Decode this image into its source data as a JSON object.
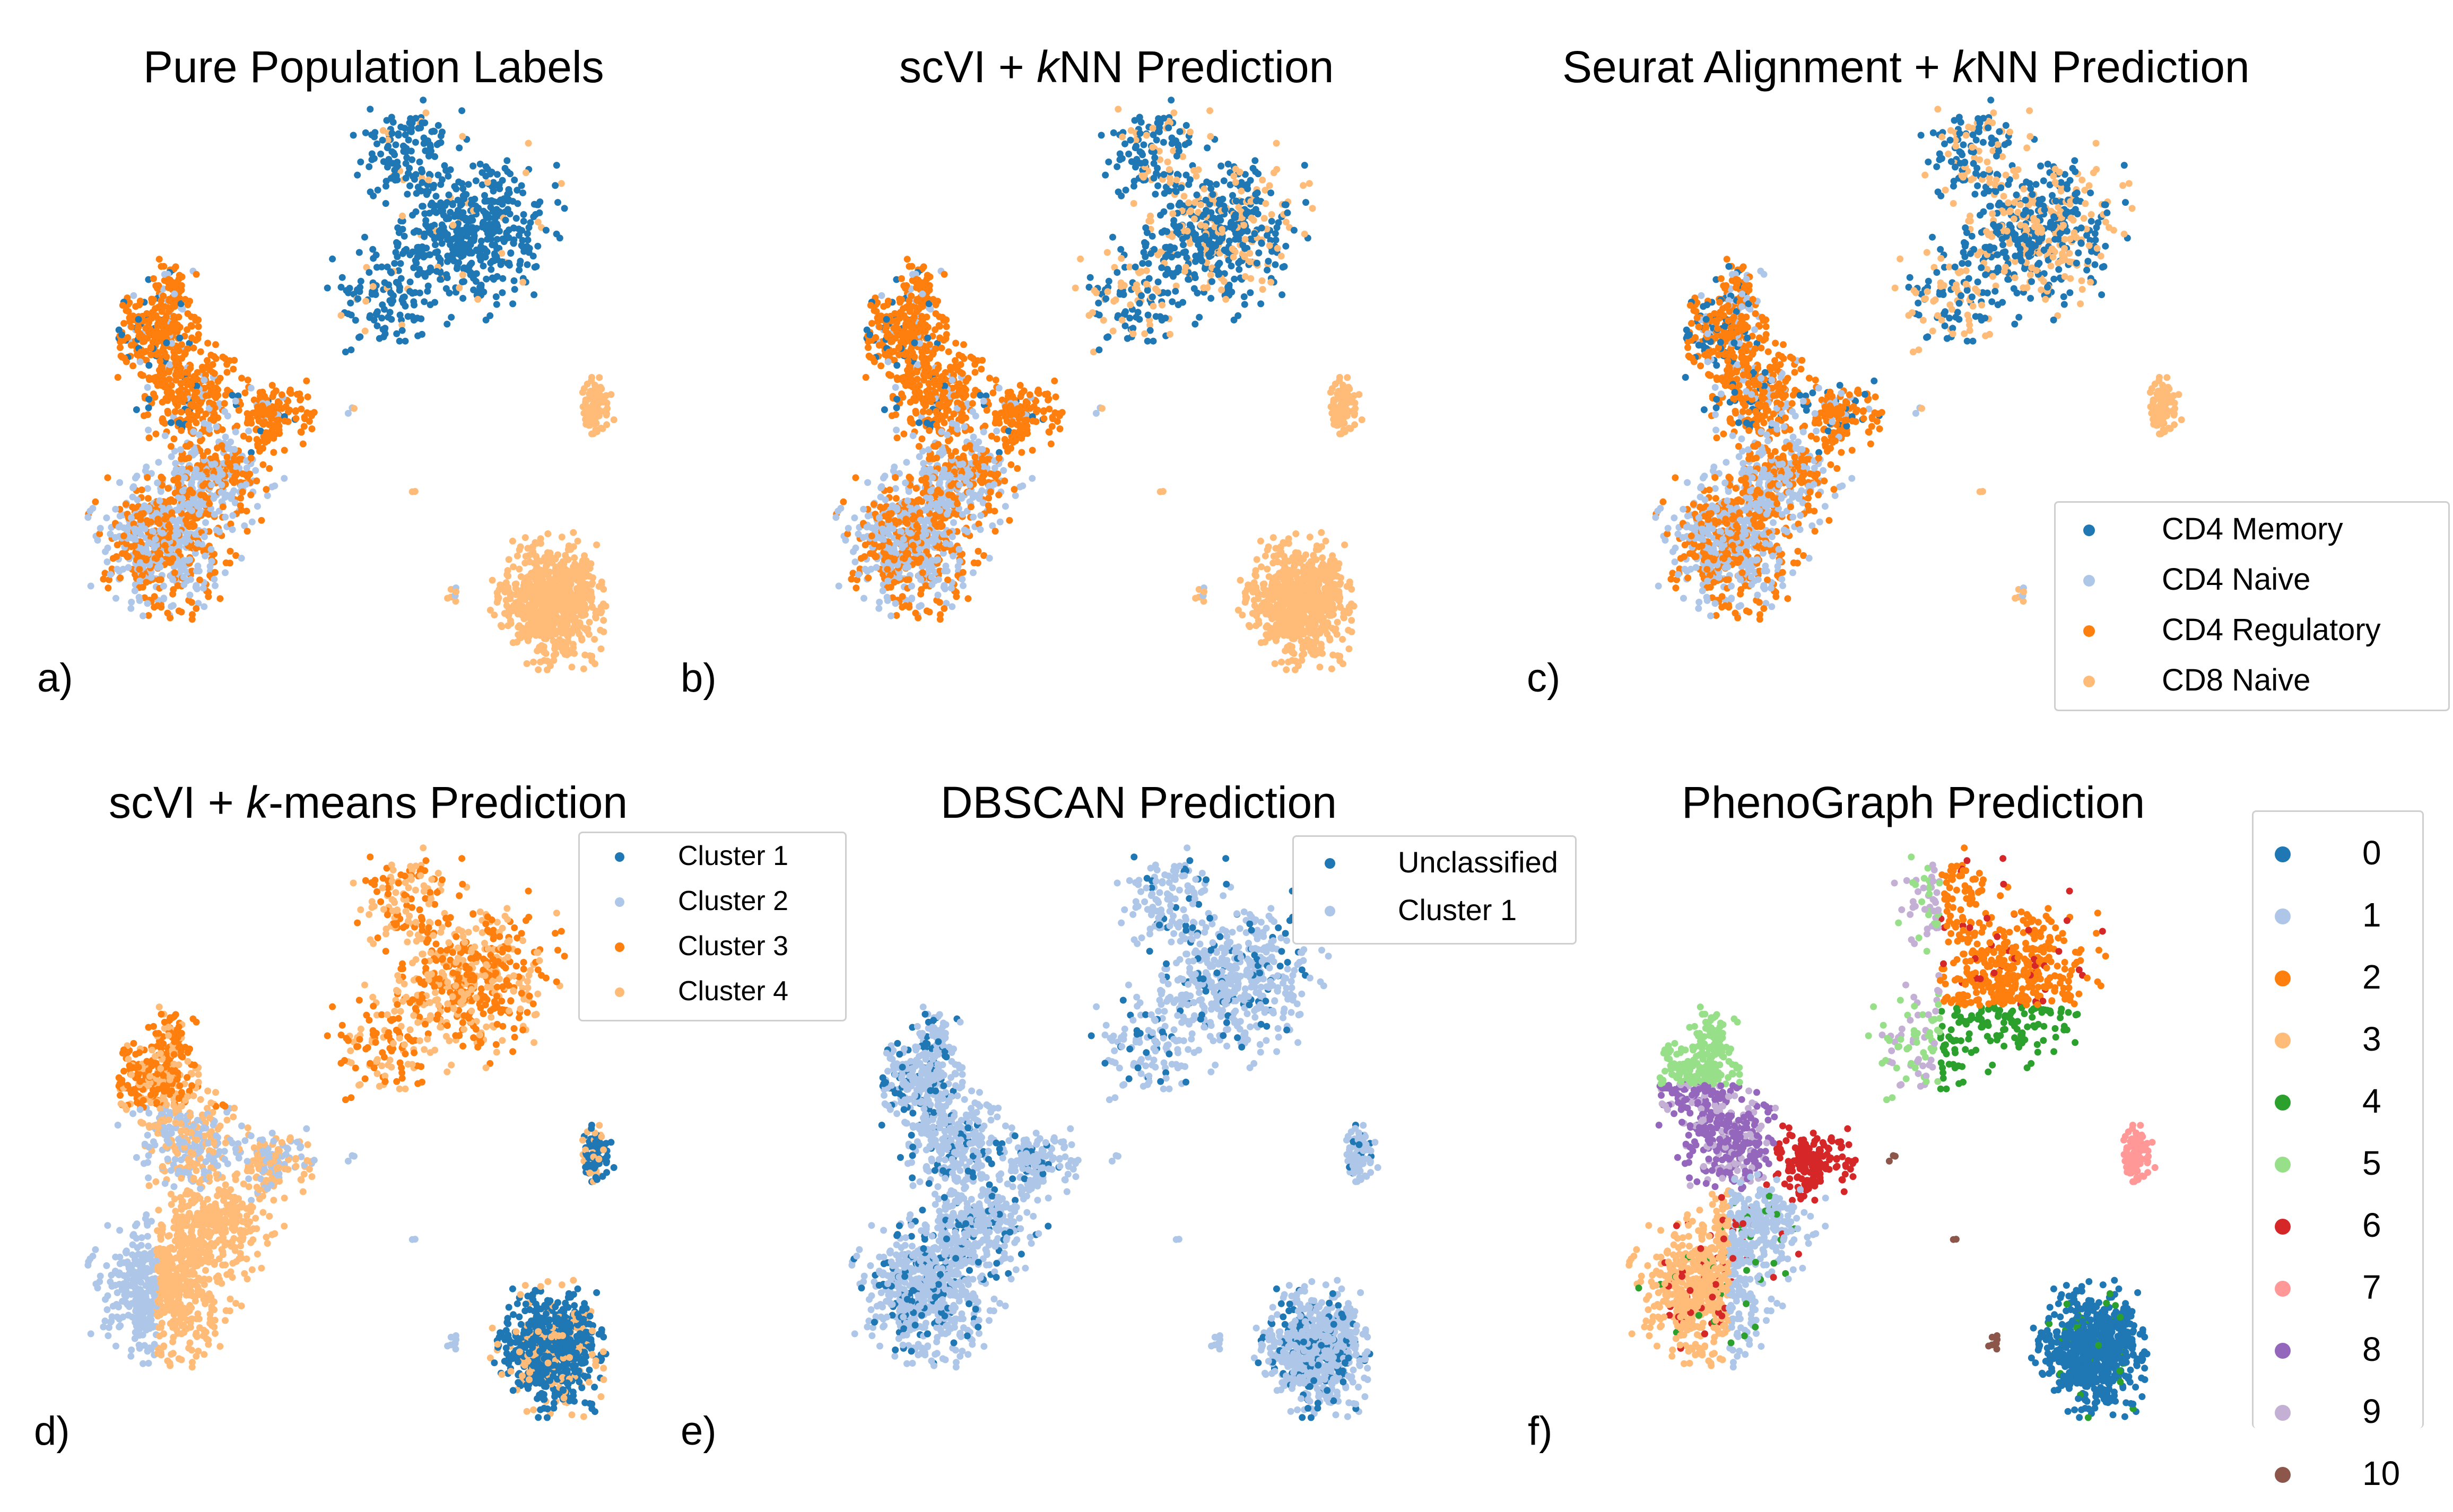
{
  "colors": {
    "blue": "#1f77b4",
    "lightblue": "#aec7e8",
    "orange": "#ff7f0e",
    "lightorange": "#ffbb78",
    "green": "#2ca02c",
    "lightgreen": "#98df8a",
    "red": "#d62728",
    "pink": "#ff9896",
    "purple": "#9467bd",
    "lavender": "#c5b0d5",
    "brown": "#8c564b"
  },
  "chart_data": [
    {
      "type": "scatter",
      "panel": "a)",
      "title": "Pure Population Labels",
      "legend": null,
      "coloring": "cell_type",
      "series": [
        {
          "name": "CD4 Memory",
          "color": "#1f77b4"
        },
        {
          "name": "CD4 Naive",
          "color": "#aec7e8"
        },
        {
          "name": "CD4 Regulatory",
          "color": "#ff7f0e"
        },
        {
          "name": "CD8 Naive",
          "color": "#ffbb78"
        }
      ]
    },
    {
      "type": "scatter",
      "panel": "b)",
      "title_parts": [
        "scVI + ",
        "k",
        "NN Prediction"
      ],
      "legend": null,
      "coloring": "knn_scvi"
    },
    {
      "type": "scatter",
      "panel": "c)",
      "title_parts": [
        "Seurat Alignment + ",
        "k",
        "NN Prediction"
      ],
      "legend": "lower-right",
      "coloring": "knn_seurat",
      "legend_entries": [
        {
          "label": "CD4 Memory",
          "color": "#1f77b4"
        },
        {
          "label": "CD4 Naive",
          "color": "#aec7e8"
        },
        {
          "label": "CD4 Regulatory",
          "color": "#ff7f0e"
        },
        {
          "label": "CD8 Naive",
          "color": "#ffbb78"
        }
      ]
    },
    {
      "type": "scatter",
      "panel": "d)",
      "title_parts": [
        "scVI + ",
        "k",
        "-means Prediction"
      ],
      "legend": "top-right",
      "coloring": "kmeans",
      "legend_entries": [
        {
          "label": "Cluster 1",
          "color": "#1f77b4"
        },
        {
          "label": "Cluster 2",
          "color": "#aec7e8"
        },
        {
          "label": "Cluster 3",
          "color": "#ff7f0e"
        },
        {
          "label": "Cluster 4",
          "color": "#ffbb78"
        }
      ]
    },
    {
      "type": "scatter",
      "panel": "e)",
      "title": "DBSCAN Prediction",
      "legend": "top-right",
      "coloring": "dbscan",
      "legend_entries": [
        {
          "label": "Unclassified",
          "color": "#1f77b4"
        },
        {
          "label": "Cluster 1",
          "color": "#aec7e8"
        }
      ]
    },
    {
      "type": "scatter",
      "panel": "f)",
      "title": "PhenoGraph Prediction",
      "legend": "right, outside",
      "coloring": "phenograph",
      "legend_entries": [
        {
          "label": "0",
          "color": "#1f77b4"
        },
        {
          "label": "1",
          "color": "#aec7e8"
        },
        {
          "label": "2",
          "color": "#ff7f0e"
        },
        {
          "label": "3",
          "color": "#ffbb78"
        },
        {
          "label": "4",
          "color": "#2ca02c"
        },
        {
          "label": "5",
          "color": "#98df8a"
        },
        {
          "label": "6",
          "color": "#d62728"
        },
        {
          "label": "7",
          "color": "#ff9896"
        },
        {
          "label": "8",
          "color": "#9467bd"
        },
        {
          "label": "9",
          "color": "#c5b0d5"
        },
        {
          "label": "10",
          "color": "#8c564b"
        }
      ]
    }
  ]
}
